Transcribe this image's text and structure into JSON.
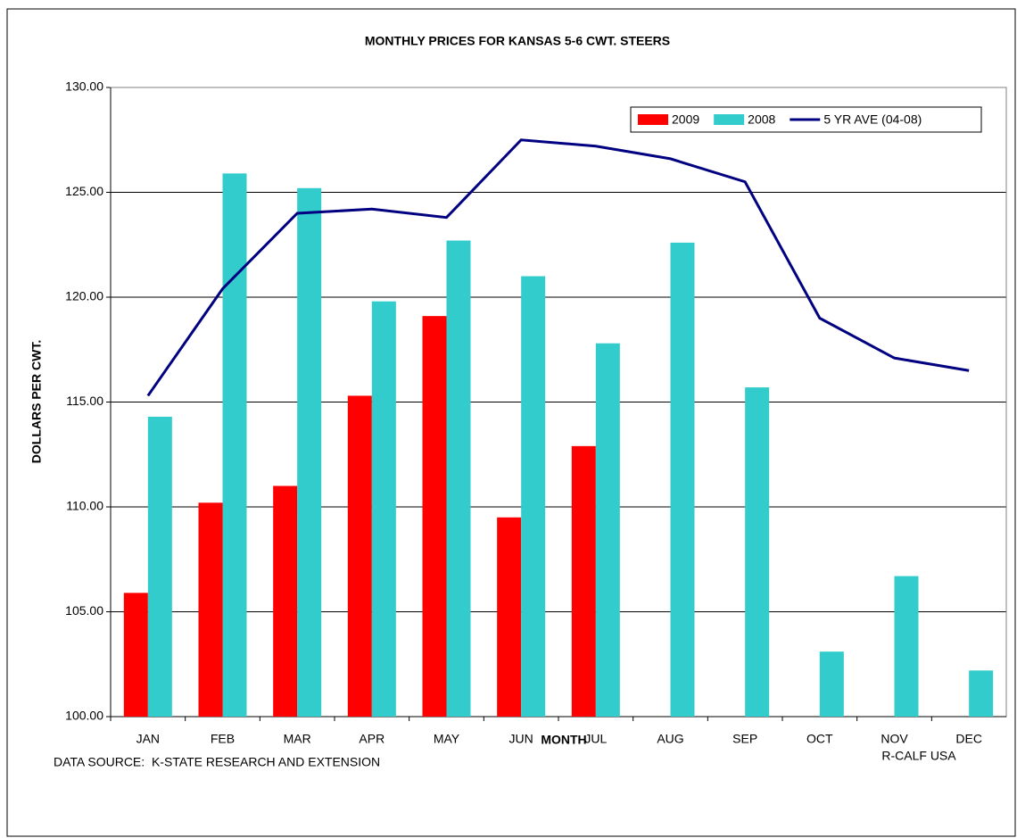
{
  "chart_data": {
    "type": "bar",
    "title": "MONTHLY PRICES FOR KANSAS 5-6 CWT. STEERS",
    "x_label": "MONTH",
    "y_label": "DOLLARS PER CWT.",
    "source": "DATA SOURCE:  K-STATE RESEARCH AND EXTENSION",
    "credit": "R-CALF USA",
    "categories": [
      "JAN",
      "FEB",
      "MAR",
      "APR",
      "MAY",
      "JUN",
      "JUL",
      "AUG",
      "SEP",
      "OCT",
      "NOV",
      "DEC"
    ],
    "series": [
      {
        "name": "2009",
        "type": "bar",
        "color": "#ff0000",
        "values": [
          105.9,
          110.2,
          111.0,
          115.3,
          119.1,
          109.5,
          112.9,
          null,
          null,
          null,
          null,
          null
        ]
      },
      {
        "name": "2008",
        "type": "bar",
        "color": "#33cccc",
        "values": [
          114.3,
          125.9,
          125.2,
          119.8,
          122.7,
          121.0,
          117.8,
          122.6,
          115.7,
          103.1,
          106.7,
          102.2
        ]
      },
      {
        "name": "5 YR AVE (04-08)",
        "type": "line",
        "color": "#000080",
        "values": [
          115.3,
          120.4,
          124.0,
          124.2,
          123.8,
          127.5,
          127.2,
          126.6,
          125.5,
          119.0,
          117.1,
          116.5
        ]
      }
    ],
    "ylim": [
      100,
      130
    ],
    "yticks": [
      {
        "value": 100,
        "label": "100.00"
      },
      {
        "value": 105,
        "label": "105.00"
      },
      {
        "value": 110,
        "label": "110.00"
      },
      {
        "value": 115,
        "label": "115.00"
      },
      {
        "value": 120,
        "label": "120.00"
      },
      {
        "value": 125,
        "label": "125.00"
      },
      {
        "value": 130,
        "label": "130.00"
      }
    ],
    "grid": true,
    "legend": "top-right"
  }
}
